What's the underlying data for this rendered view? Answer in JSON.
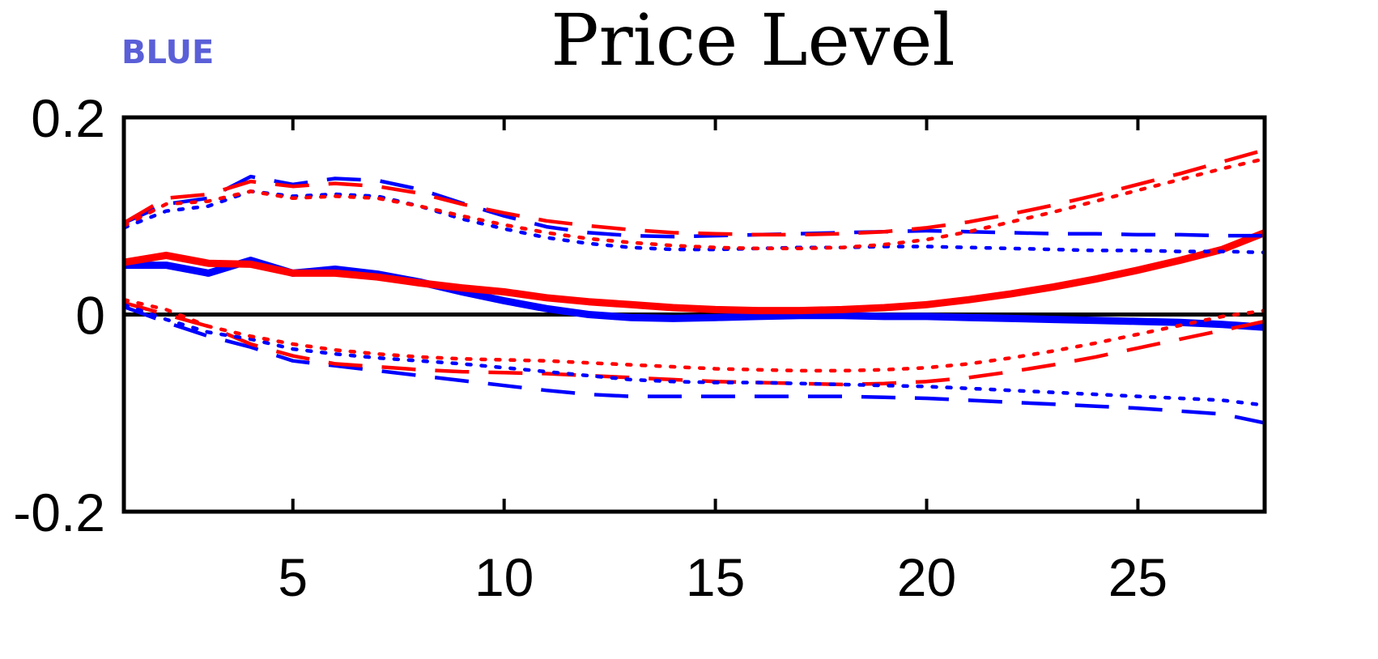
{
  "badge": "BLUE",
  "colors": {
    "blue": "#0000ff",
    "red": "#ff0000",
    "axis": "#000000",
    "badge": "#5a5fd8"
  },
  "chart_data": {
    "type": "line",
    "title": "Price Level",
    "xlabel": "",
    "ylabel": "",
    "xlim": [
      1,
      28
    ],
    "ylim": [
      -0.2,
      0.2
    ],
    "xticks": [
      5,
      10,
      15,
      20,
      25
    ],
    "xtick_labels": [
      "5",
      "10",
      "15",
      "20",
      "25"
    ],
    "yticks": [
      -0.2,
      0,
      0.2
    ],
    "ytick_labels": [
      "-0.2",
      "0",
      "0.2"
    ],
    "grid": false,
    "zero_line": true,
    "x": [
      1,
      2,
      3,
      4,
      5,
      6,
      7,
      8,
      9,
      10,
      11,
      12,
      13,
      14,
      15,
      16,
      17,
      18,
      19,
      20,
      21,
      22,
      23,
      24,
      25,
      26,
      27,
      28
    ],
    "series": [
      {
        "color": "blue",
        "style": "solid-thick",
        "values": [
          0.05,
          0.05,
          0.042,
          0.055,
          0.042,
          0.046,
          0.041,
          0.033,
          0.023,
          0.014,
          0.006,
          0.0,
          -0.003,
          -0.004,
          -0.003,
          -0.002,
          -0.001,
          -0.001,
          -0.002,
          -0.002,
          -0.003,
          -0.004,
          -0.005,
          -0.006,
          -0.007,
          -0.008,
          -0.01,
          -0.013
        ]
      },
      {
        "color": "red",
        "style": "solid-thick",
        "values": [
          0.053,
          0.06,
          0.052,
          0.051,
          0.042,
          0.042,
          0.038,
          0.032,
          0.027,
          0.023,
          0.017,
          0.013,
          0.01,
          0.007,
          0.005,
          0.004,
          0.004,
          0.005,
          0.007,
          0.01,
          0.015,
          0.021,
          0.028,
          0.036,
          0.045,
          0.055,
          0.066,
          0.083
        ]
      },
      {
        "color": "blue",
        "style": "dashed",
        "values": [
          0.093,
          0.112,
          0.118,
          0.14,
          0.132,
          0.138,
          0.136,
          0.127,
          0.113,
          0.1,
          0.089,
          0.083,
          0.08,
          0.079,
          0.08,
          0.081,
          0.082,
          0.083,
          0.084,
          0.085,
          0.084,
          0.083,
          0.082,
          0.082,
          0.081,
          0.081,
          0.08,
          0.08
        ]
      },
      {
        "color": "red",
        "style": "dashed",
        "values": [
          0.093,
          0.118,
          0.122,
          0.135,
          0.13,
          0.133,
          0.13,
          0.123,
          0.112,
          0.103,
          0.095,
          0.09,
          0.086,
          0.083,
          0.082,
          0.081,
          0.081,
          0.082,
          0.084,
          0.088,
          0.094,
          0.102,
          0.111,
          0.121,
          0.132,
          0.143,
          0.155,
          0.167
        ]
      },
      {
        "color": "blue",
        "style": "dotted",
        "values": [
          0.088,
          0.105,
          0.11,
          0.125,
          0.12,
          0.122,
          0.12,
          0.11,
          0.097,
          0.087,
          0.078,
          0.072,
          0.068,
          0.066,
          0.066,
          0.067,
          0.068,
          0.068,
          0.069,
          0.069,
          0.068,
          0.067,
          0.066,
          0.065,
          0.065,
          0.064,
          0.064,
          0.063
        ]
      },
      {
        "color": "red",
        "style": "dotted",
        "values": [
          0.09,
          0.112,
          0.115,
          0.125,
          0.118,
          0.12,
          0.118,
          0.11,
          0.1,
          0.091,
          0.083,
          0.077,
          0.073,
          0.07,
          0.068,
          0.067,
          0.067,
          0.068,
          0.071,
          0.076,
          0.084,
          0.094,
          0.104,
          0.115,
          0.126,
          0.137,
          0.148,
          0.158
        ]
      },
      {
        "color": "blue",
        "style": "dashed",
        "values": [
          0.008,
          -0.008,
          -0.022,
          -0.033,
          -0.047,
          -0.052,
          -0.057,
          -0.062,
          -0.067,
          -0.072,
          -0.077,
          -0.081,
          -0.083,
          -0.083,
          -0.083,
          -0.083,
          -0.083,
          -0.083,
          -0.084,
          -0.085,
          -0.087,
          -0.089,
          -0.091,
          -0.093,
          -0.095,
          -0.098,
          -0.101,
          -0.11
        ]
      },
      {
        "color": "red",
        "style": "dashed",
        "values": [
          0.012,
          0.0,
          -0.012,
          -0.03,
          -0.042,
          -0.05,
          -0.053,
          -0.056,
          -0.058,
          -0.059,
          -0.06,
          -0.062,
          -0.064,
          -0.066,
          -0.068,
          -0.069,
          -0.07,
          -0.071,
          -0.07,
          -0.068,
          -0.064,
          -0.058,
          -0.051,
          -0.043,
          -0.034,
          -0.025,
          -0.016,
          -0.007
        ]
      },
      {
        "color": "blue",
        "style": "dotted",
        "values": [
          0.01,
          -0.005,
          -0.018,
          -0.025,
          -0.035,
          -0.04,
          -0.044,
          -0.047,
          -0.05,
          -0.054,
          -0.058,
          -0.062,
          -0.066,
          -0.068,
          -0.069,
          -0.069,
          -0.07,
          -0.071,
          -0.072,
          -0.073,
          -0.075,
          -0.077,
          -0.079,
          -0.081,
          -0.083,
          -0.085,
          -0.087,
          -0.092
        ]
      },
      {
        "color": "red",
        "style": "dotted",
        "values": [
          0.015,
          0.005,
          -0.012,
          -0.022,
          -0.03,
          -0.036,
          -0.04,
          -0.043,
          -0.045,
          -0.046,
          -0.047,
          -0.049,
          -0.051,
          -0.053,
          -0.055,
          -0.056,
          -0.057,
          -0.057,
          -0.056,
          -0.054,
          -0.05,
          -0.044,
          -0.037,
          -0.029,
          -0.02,
          -0.011,
          -0.002,
          0.004
        ]
      }
    ]
  }
}
